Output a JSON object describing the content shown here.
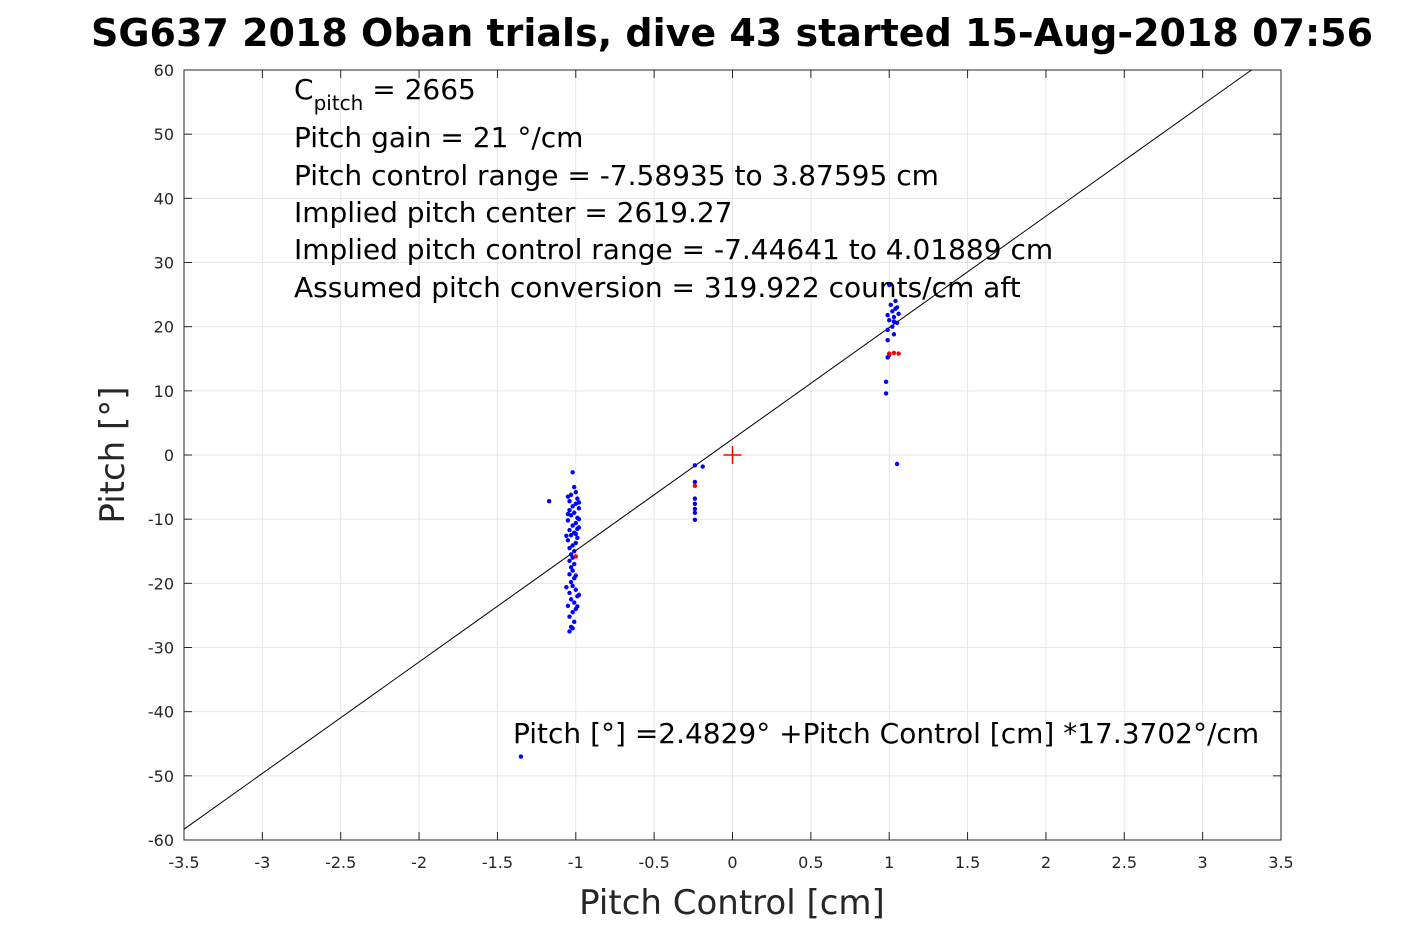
{
  "chart_data": {
    "type": "scatter",
    "title": "SG637 2018 Oban trials, dive 43 started 15-Aug-2018 07:56",
    "xlabel": "Pitch Control [cm]",
    "ylabel": "Pitch [°]",
    "xlim": [
      -3.5,
      3.5
    ],
    "ylim": [
      -60,
      60
    ],
    "xticks": [
      -3.5,
      -3,
      -2.5,
      -2,
      -1.5,
      -1,
      -0.5,
      0,
      0.5,
      1,
      1.5,
      2,
      2.5,
      3,
      3.5
    ],
    "xtick_labels": [
      "-3.5",
      "-3",
      "-2.5",
      "-2",
      "-1.5",
      "-1",
      "-0.5",
      "0",
      "0.5",
      "1",
      "1.5",
      "2",
      "2.5",
      "3",
      "3.5"
    ],
    "yticks": [
      -60,
      -50,
      -40,
      -30,
      -20,
      -10,
      0,
      10,
      20,
      30,
      40,
      50,
      60
    ],
    "ytick_labels": [
      "-60",
      "-50",
      "-40",
      "-30",
      "-20",
      "-10",
      "0",
      "10",
      "20",
      "30",
      "40",
      "50",
      "60"
    ],
    "grid": true,
    "annotations": {
      "c_pitch_symbol": "C",
      "c_pitch_subscript": "pitch",
      "c_pitch_value": " = 2665",
      "lines": [
        "Pitch gain = 21 °/cm",
        "Pitch control range = -7.58935 to 3.87595 cm",
        "Implied pitch center = 2619.27",
        "Implied pitch control range = -7.44641 to 4.01889 cm",
        "Assumed pitch conversion = 319.922 counts/cm aft"
      ],
      "fit_label": "Pitch [°] =2.4829° +Pitch Control [cm] *17.3702°/cm"
    },
    "fit_line": {
      "intercept": 2.4829,
      "slope": 17.3702,
      "color": "#000000"
    },
    "center_marker": {
      "x": 0,
      "y": 0,
      "color": "#ff0000",
      "shape": "plus"
    },
    "series": [
      {
        "color": "#0000ff",
        "points": [
          [
            -1.02,
            -2.7
          ],
          [
            -1.01,
            -5.0
          ],
          [
            -1.0,
            -5.8
          ],
          [
            -1.03,
            -6.2
          ],
          [
            -1.05,
            -6.5
          ],
          [
            -0.99,
            -6.8
          ],
          [
            -1.04,
            -7.2
          ],
          [
            -1.0,
            -7.6
          ],
          [
            -1.02,
            -8.0
          ],
          [
            -0.98,
            -8.3
          ],
          [
            -1.04,
            -8.6
          ],
          [
            -1.01,
            -9.0
          ],
          [
            -1.03,
            -9.4
          ],
          [
            -0.99,
            -9.8
          ],
          [
            -1.05,
            -10.2
          ],
          [
            -1.0,
            -10.6
          ],
          [
            -1.02,
            -11.0
          ],
          [
            -0.98,
            -11.3
          ],
          [
            -1.04,
            -11.7
          ],
          [
            -1.01,
            -12.1
          ],
          [
            -1.03,
            -12.5
          ],
          [
            -0.99,
            -12.9
          ],
          [
            -1.05,
            -13.3
          ],
          [
            -1.0,
            -13.7
          ],
          [
            -1.02,
            -14.1
          ],
          [
            -1.04,
            -14.5
          ],
          [
            -1.01,
            -15.0
          ],
          [
            -1.03,
            -15.5
          ],
          [
            -1.02,
            -16.0
          ],
          [
            -1.04,
            -16.5
          ],
          [
            -1.01,
            -17.0
          ],
          [
            -1.03,
            -17.5
          ],
          [
            -1.02,
            -18.0
          ],
          [
            -1.04,
            -18.6
          ],
          [
            -1.01,
            -19.2
          ],
          [
            -1.03,
            -19.8
          ],
          [
            -1.02,
            -20.4
          ],
          [
            -1.0,
            -21.0
          ],
          [
            -1.04,
            -21.5
          ],
          [
            -0.99,
            -22.0
          ],
          [
            -1.03,
            -22.5
          ],
          [
            -1.01,
            -23.0
          ],
          [
            -1.05,
            -23.5
          ],
          [
            -1.0,
            -24.0
          ],
          [
            -1.02,
            -24.5
          ],
          [
            -1.04,
            -25.2
          ],
          [
            -1.01,
            -26.0
          ],
          [
            -1.03,
            -26.8
          ],
          [
            -1.04,
            -27.5
          ],
          [
            -1.02,
            -27.0
          ],
          [
            -0.98,
            -10.0
          ],
          [
            -0.98,
            -7.4
          ],
          [
            -0.99,
            -11.5
          ],
          [
            -1.0,
            -12.3
          ],
          [
            -0.98,
            -21.8
          ],
          [
            -0.99,
            -23.6
          ],
          [
            -1.05,
            -9.2
          ],
          [
            -1.06,
            -12.6
          ],
          [
            -1.06,
            -20.6
          ],
          [
            -1.0,
            -18.8
          ],
          [
            -1.17,
            -7.2
          ],
          [
            -1.35,
            -47.0
          ],
          [
            -0.24,
            -1.6
          ],
          [
            -0.24,
            -4.2
          ],
          [
            -0.24,
            -6.8
          ],
          [
            -0.24,
            -7.6
          ],
          [
            -0.24,
            -8.4
          ],
          [
            -0.24,
            -9.0
          ],
          [
            -0.24,
            -10.1
          ],
          [
            -0.19,
            -1.8
          ],
          [
            1.0,
            26.5
          ],
          [
            1.04,
            24.0
          ],
          [
            1.05,
            23.0
          ],
          [
            1.02,
            22.4
          ],
          [
            1.06,
            22.0
          ],
          [
            1.03,
            21.5
          ],
          [
            1.0,
            21.0
          ],
          [
            1.05,
            20.6
          ],
          [
            1.02,
            20.0
          ],
          [
            0.99,
            19.5
          ],
          [
            1.03,
            18.8
          ],
          [
            0.99,
            17.9
          ],
          [
            1.0,
            15.6
          ],
          [
            0.99,
            15.2
          ],
          [
            0.98,
            11.4
          ],
          [
            0.98,
            9.6
          ],
          [
            1.05,
            -1.4
          ],
          [
            1.04,
            22.8
          ],
          [
            1.01,
            23.4
          ],
          [
            0.99,
            21.8
          ],
          [
            1.03,
            20.8
          ]
        ]
      },
      {
        "color": "#ff0000",
        "points": [
          [
            -1.0,
            -15.8
          ],
          [
            -0.24,
            -4.8
          ],
          [
            1.0,
            15.8
          ],
          [
            1.03,
            15.9
          ],
          [
            1.06,
            15.8
          ]
        ]
      }
    ]
  }
}
